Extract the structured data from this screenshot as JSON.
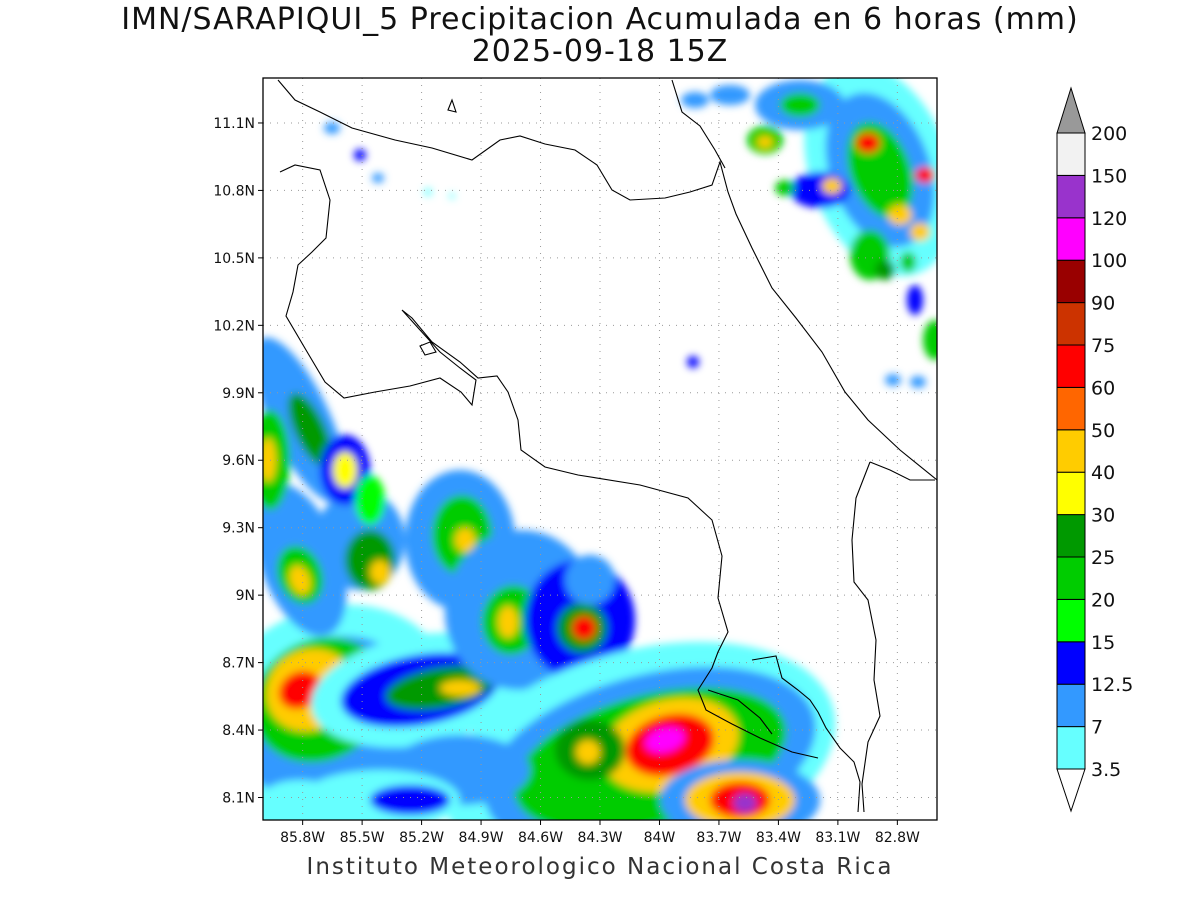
{
  "title": {
    "line1": "IMN/SARAPIQUI_5 Precipitacion Acumulada en 6 horas (mm)",
    "line2": "2025-09-18 15Z"
  },
  "footer": "Instituto Meteorologico Nacional Costa Rica",
  "map": {
    "lon_range": [
      -86.0,
      -82.6
    ],
    "lat_range": [
      8.0,
      11.3
    ],
    "lon_ticks": [
      "85.8W",
      "85.5W",
      "85.2W",
      "84.9W",
      "84.6W",
      "84.3W",
      "84W",
      "83.7W",
      "83.4W",
      "83.1W",
      "82.8W"
    ],
    "lat_ticks": [
      "8.1N",
      "8.4N",
      "8.7N",
      "9N",
      "9.3N",
      "9.6N",
      "9.9N",
      "10.2N",
      "10.5N",
      "10.8N",
      "11.1N"
    ],
    "gridlines": true
  },
  "colorbar": {
    "labels": [
      "3.5",
      "7",
      "12.5",
      "15",
      "20",
      "25",
      "30",
      "40",
      "50",
      "60",
      "75",
      "90",
      "100",
      "120",
      "150",
      "200"
    ],
    "colors": [
      "#66ffff",
      "#3399ff",
      "#0000ff",
      "#00ff00",
      "#00cc00",
      "#009900",
      "#ffff00",
      "#ffcc00",
      "#ff6600",
      "#ff0000",
      "#cc3300",
      "#990000",
      "#ff00ff",
      "#9933cc",
      "#f2f2f2"
    ],
    "over_color": "#999999",
    "under_color": "#ffffff"
  }
}
